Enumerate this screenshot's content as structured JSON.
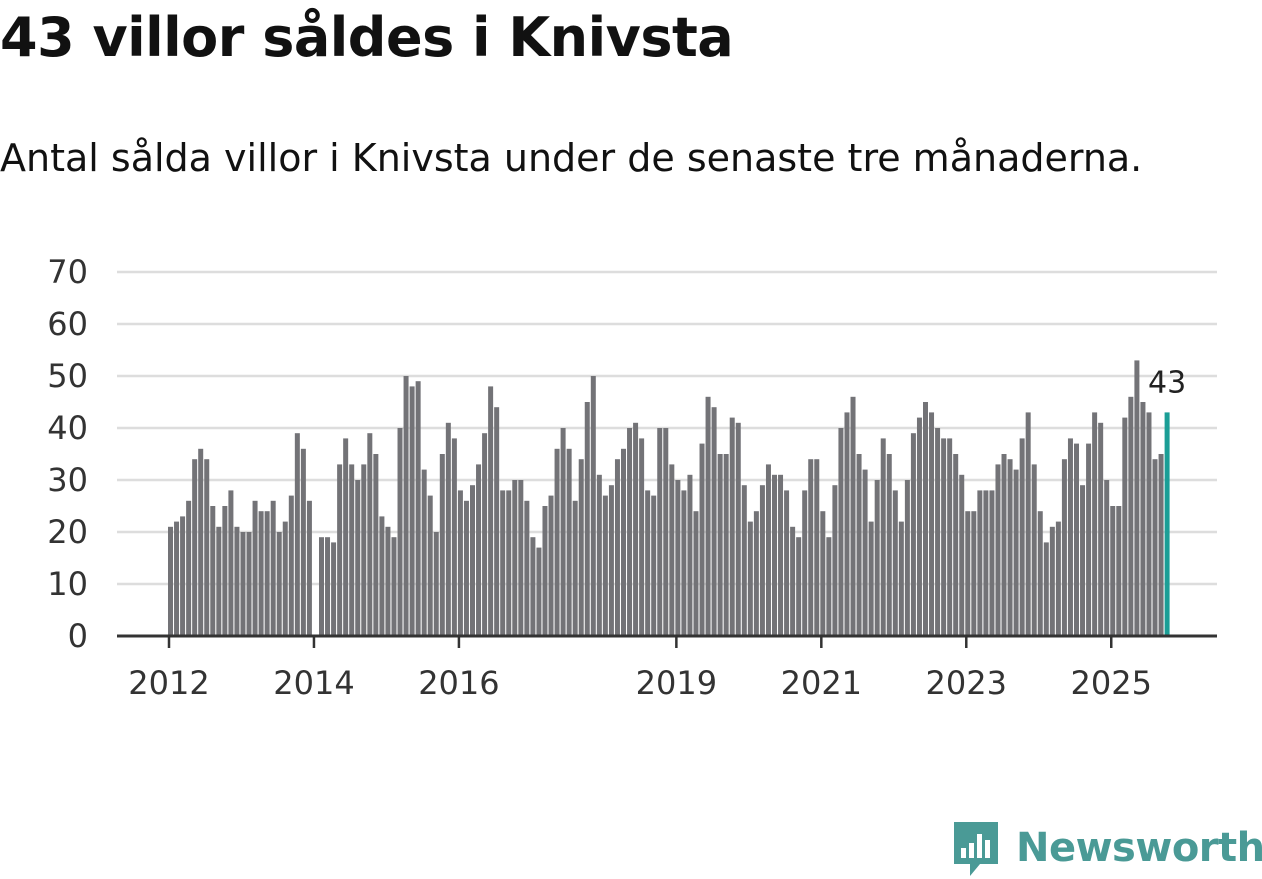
{
  "title": "43 villor såldes i Knivsta",
  "subtitle": "Antal sålda villor i Knivsta under de senaste tre månaderna.",
  "brand": {
    "name": "Newsworthy",
    "color": "#4a9a96",
    "icon": "newsworthy-logo-icon"
  },
  "colors": {
    "bar": "#737377",
    "highlight": "#1b9e96",
    "grid": "#dddddd",
    "axis": "#333333"
  },
  "chart_data": {
    "type": "bar",
    "title": "Antal sålda villor i Knivsta",
    "xlabel": "",
    "ylabel": "",
    "ylim": [
      0,
      70
    ],
    "yticks": [
      0,
      10,
      20,
      30,
      40,
      50,
      60,
      70
    ],
    "x_range": [
      2011.7,
      2025.85
    ],
    "xticks": [
      {
        "label": "2012",
        "value": 2012
      },
      {
        "label": "2014",
        "value": 2014
      },
      {
        "label": "2016",
        "value": 2016
      },
      {
        "label": "2019",
        "value": 2019
      },
      {
        "label": "2021",
        "value": 2021
      },
      {
        "label": "2023",
        "value": 2023
      },
      {
        "label": "2025",
        "value": 2025
      }
    ],
    "start": {
      "year": 2012,
      "month": 1
    },
    "values": [
      21,
      22,
      23,
      26,
      34,
      36,
      34,
      25,
      21,
      25,
      28,
      21,
      20,
      20,
      26,
      24,
      24,
      26,
      20,
      22,
      27,
      39,
      36,
      26,
      null,
      19,
      19,
      18,
      33,
      38,
      33,
      30,
      33,
      39,
      35,
      23,
      21,
      19,
      40,
      50,
      48,
      49,
      32,
      27,
      20,
      35,
      41,
      38,
      28,
      26,
      29,
      33,
      39,
      48,
      44,
      28,
      28,
      30,
      30,
      26,
      19,
      17,
      25,
      27,
      36,
      40,
      36,
      26,
      34,
      45,
      50,
      31,
      27,
      29,
      34,
      36,
      40,
      41,
      38,
      28,
      27,
      40,
      40,
      33,
      30,
      28,
      31,
      24,
      37,
      46,
      44,
      35,
      35,
      42,
      41,
      29,
      22,
      24,
      29,
      33,
      31,
      31,
      28,
      21,
      19,
      28,
      34,
      34,
      24,
      19,
      29,
      40,
      43,
      46,
      35,
      32,
      22,
      30,
      38,
      35,
      28,
      22,
      30,
      39,
      42,
      45,
      43,
      40,
      38,
      38,
      35,
      31,
      24,
      24,
      28,
      28,
      28,
      33,
      35,
      34,
      32,
      38,
      43,
      33,
      24,
      18,
      21,
      22,
      34,
      38,
      37,
      29,
      37,
      43,
      41,
      30,
      25,
      25,
      42,
      46,
      53,
      45,
      43,
      34,
      35,
      43
    ],
    "highlight": {
      "index": 165,
      "label": "43",
      "value": 43
    }
  }
}
